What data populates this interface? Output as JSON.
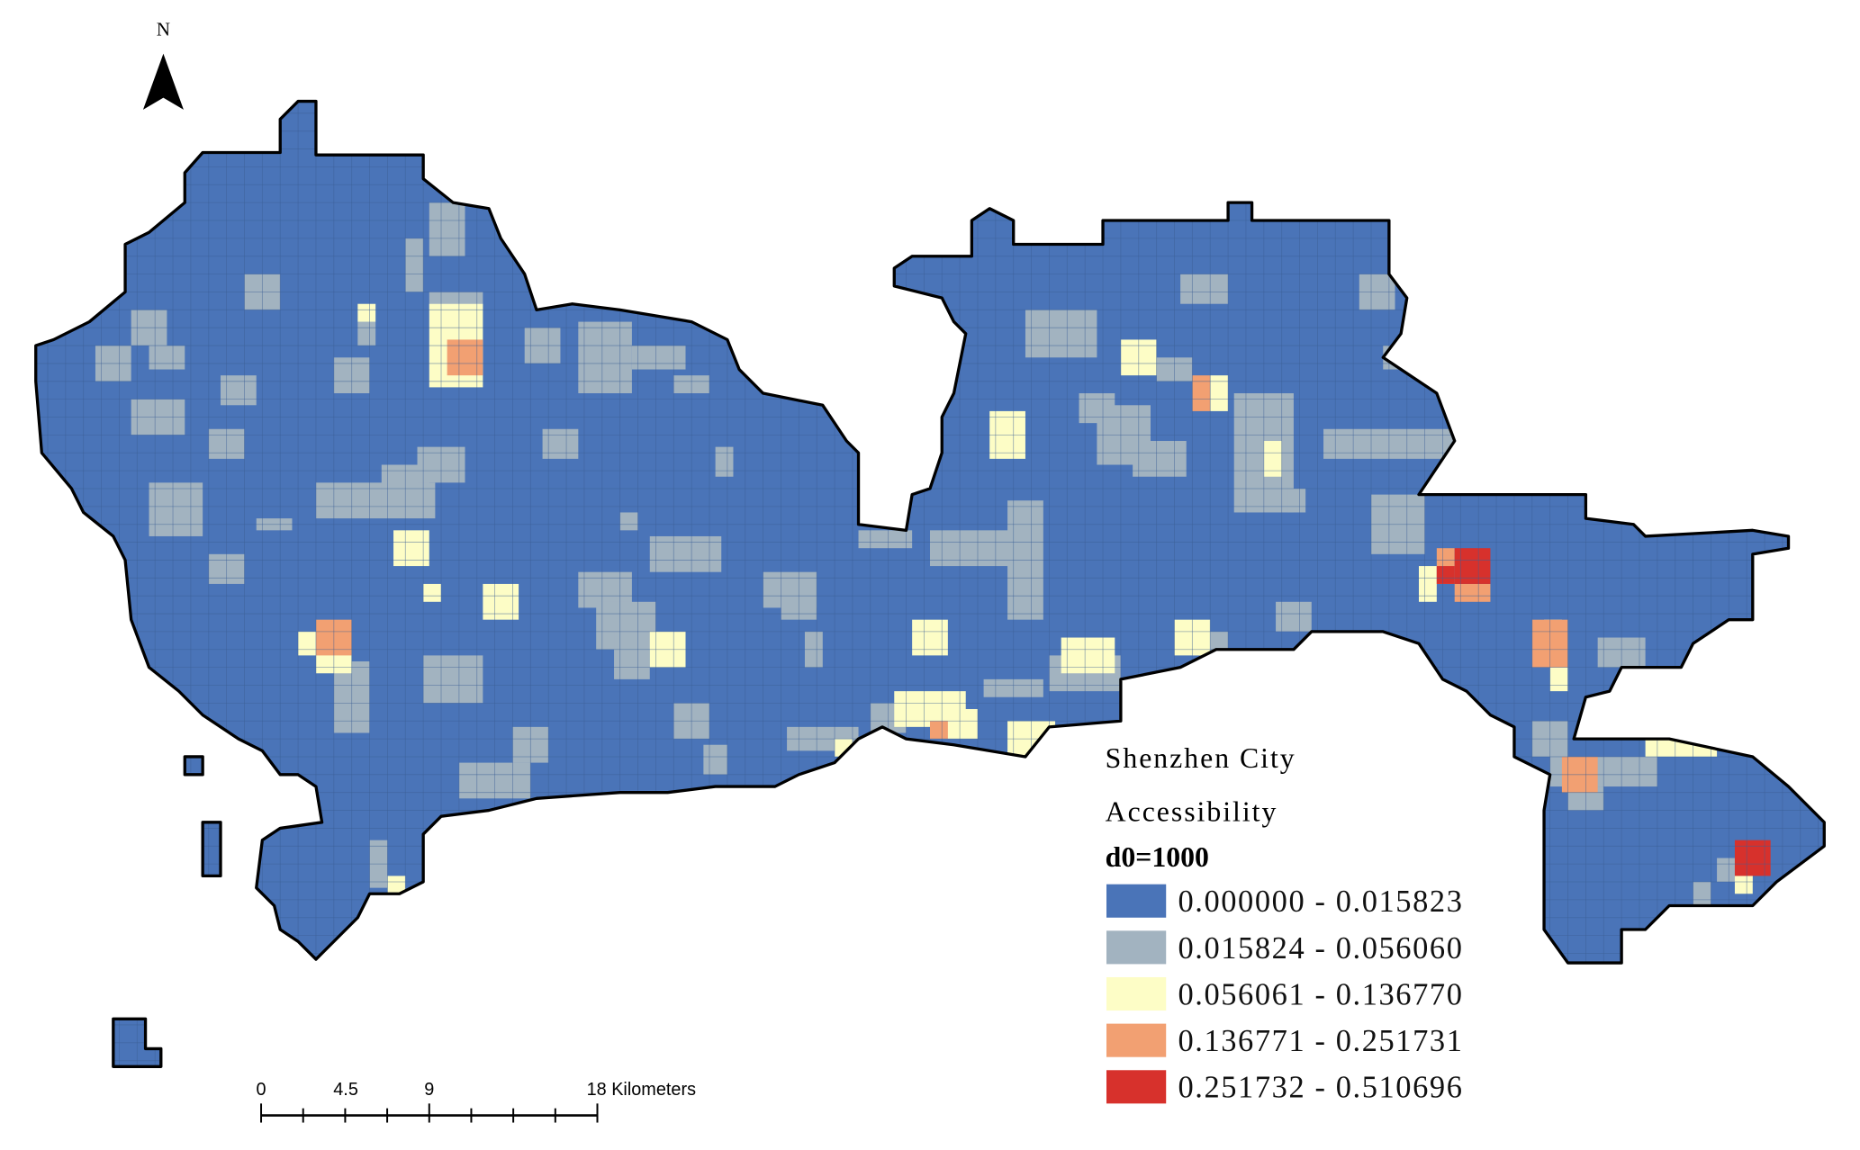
{
  "north": "N",
  "scale_bar": {
    "labels": [
      "0",
      "4.5",
      "9",
      "18 Kilometers"
    ]
  },
  "legend": {
    "title": "Shenzhen City",
    "subtitle": "Accessibility",
    "parameter": "d0=1000",
    "classes": [
      {
        "label": "0.000000 - 0.015823",
        "color": "#4a74b8"
      },
      {
        "label": "0.015824 - 0.056060",
        "color": "#a2b3c0"
      },
      {
        "label": "0.056061 - 0.136770",
        "color": "#fdfdc6"
      },
      {
        "label": "0.136771 - 0.251731",
        "color": "#f2a072"
      },
      {
        "label": "0.251732 - 0.510696",
        "color": "#d7312c"
      }
    ]
  }
}
